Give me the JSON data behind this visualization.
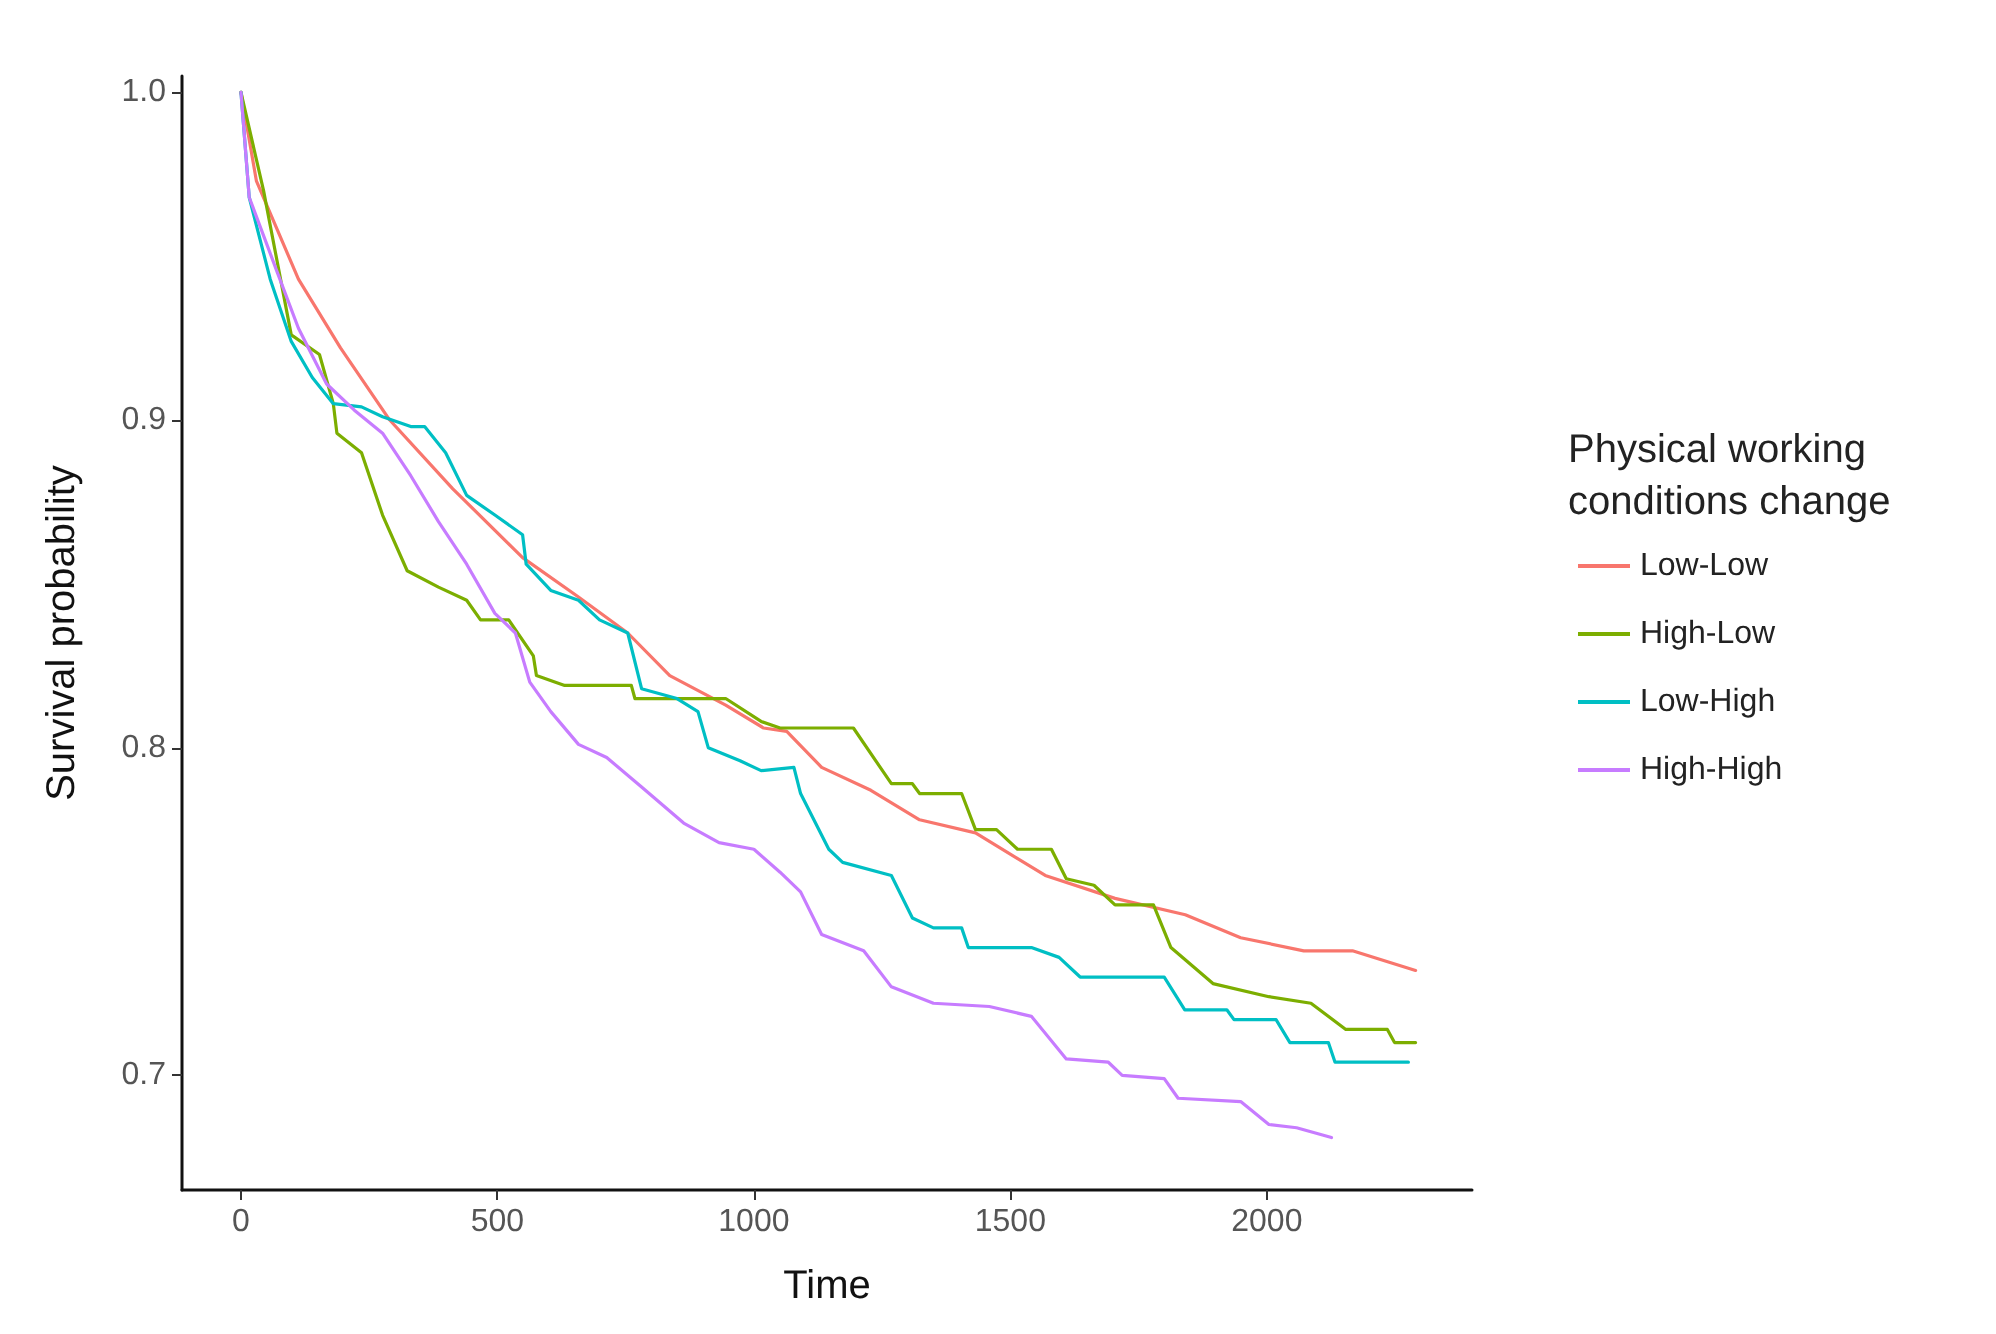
{
  "chart_data": {
    "type": "line",
    "xlabel": "Time",
    "ylabel": "Survival probability",
    "legend_title": "Physical working conditions change",
    "legend": "right",
    "grid": false,
    "marker": "none",
    "line_style": "solid",
    "xlim": [
      -115,
      2400
    ],
    "xticks": [
      0,
      500,
      1000,
      1500,
      2000
    ],
    "ylim": [
      0.665,
      1.005
    ],
    "yticks": [
      0.7,
      0.8,
      0.9,
      {
        "value": 1.0,
        "label": "1.0"
      }
    ],
    "series": [
      {
        "name": "Low-Low",
        "color": "#F8766D",
        "x": [
          0,
          30,
          112,
          194,
          290,
          413,
          549,
          658,
          754,
          836,
          945,
          1019,
          1064,
          1132,
          1228,
          1323,
          1432,
          1568,
          1704,
          1841,
          1949,
          2072,
          2167,
          2290
        ],
        "values": [
          1.0,
          0.973,
          0.943,
          0.922,
          0.9,
          0.879,
          0.858,
          0.846,
          0.835,
          0.822,
          0.813,
          0.806,
          0.805,
          0.794,
          0.787,
          0.778,
          0.774,
          0.761,
          0.754,
          0.749,
          0.742,
          0.738,
          0.738,
          0.732
        ]
      },
      {
        "name": "High-Low",
        "color": "#7CAE00",
        "x": [
          0,
          44,
          98,
          153,
          180,
          187,
          235,
          276,
          324,
          385,
          440,
          467,
          522,
          570,
          576,
          631,
          761,
          768,
          945,
          1014,
          1051,
          1194,
          1268,
          1309,
          1323,
          1405,
          1432,
          1473,
          1514,
          1580,
          1609,
          1663,
          1704,
          1779,
          1813,
          1895,
          2004,
          2086,
          2154,
          2235,
          2249,
          2290
        ],
        "values": [
          1.0,
          0.97,
          0.926,
          0.92,
          0.905,
          0.896,
          0.89,
          0.871,
          0.854,
          0.849,
          0.845,
          0.839,
          0.839,
          0.828,
          0.822,
          0.819,
          0.819,
          0.815,
          0.815,
          0.808,
          0.806,
          0.806,
          0.789,
          0.789,
          0.786,
          0.786,
          0.775,
          0.775,
          0.769,
          0.769,
          0.76,
          0.758,
          0.752,
          0.752,
          0.739,
          0.728,
          0.724,
          0.722,
          0.714,
          0.714,
          0.71,
          0.71
        ]
      },
      {
        "name": "Low-High",
        "color": "#00BFC4",
        "x": [
          0,
          16,
          57,
          98,
          139,
          180,
          235,
          276,
          331,
          358,
          399,
          440,
          495,
          549,
          556,
          604,
          658,
          699,
          754,
          781,
          850,
          891,
          911,
          973,
          1014,
          1078,
          1091,
          1146,
          1173,
          1268,
          1309,
          1350,
          1405,
          1418,
          1541,
          1595,
          1636,
          1800,
          1840,
          1922,
          1936,
          2018,
          2045,
          2120,
          2133,
          2276
        ],
        "values": [
          1.0,
          0.968,
          0.943,
          0.924,
          0.913,
          0.905,
          0.904,
          0.901,
          0.898,
          0.898,
          0.89,
          0.877,
          0.871,
          0.865,
          0.856,
          0.848,
          0.845,
          0.839,
          0.835,
          0.818,
          0.815,
          0.811,
          0.8,
          0.796,
          0.793,
          0.794,
          0.786,
          0.769,
          0.765,
          0.761,
          0.748,
          0.745,
          0.745,
          0.739,
          0.739,
          0.736,
          0.73,
          0.73,
          0.72,
          0.72,
          0.717,
          0.717,
          0.71,
          0.71,
          0.704,
          0.704
        ]
      },
      {
        "name": "High-High",
        "color": "#C77CFF",
        "x": [
          0,
          16,
          71,
          112,
          167,
          221,
          276,
          331,
          385,
          440,
          495,
          535,
          563,
          604,
          658,
          713,
          781,
          863,
          932,
          1000,
          1051,
          1091,
          1132,
          1214,
          1268,
          1350,
          1459,
          1541,
          1609,
          1691,
          1718,
          1800,
          1827,
          1949,
          2004,
          2058,
          2126
        ],
        "values": [
          1.0,
          0.968,
          0.945,
          0.928,
          0.911,
          0.903,
          0.896,
          0.883,
          0.869,
          0.856,
          0.841,
          0.835,
          0.82,
          0.811,
          0.801,
          0.797,
          0.788,
          0.777,
          0.771,
          0.769,
          0.762,
          0.756,
          0.743,
          0.738,
          0.727,
          0.722,
          0.721,
          0.718,
          0.705,
          0.704,
          0.7,
          0.699,
          0.693,
          0.692,
          0.685,
          0.684,
          0.681
        ]
      }
    ]
  }
}
